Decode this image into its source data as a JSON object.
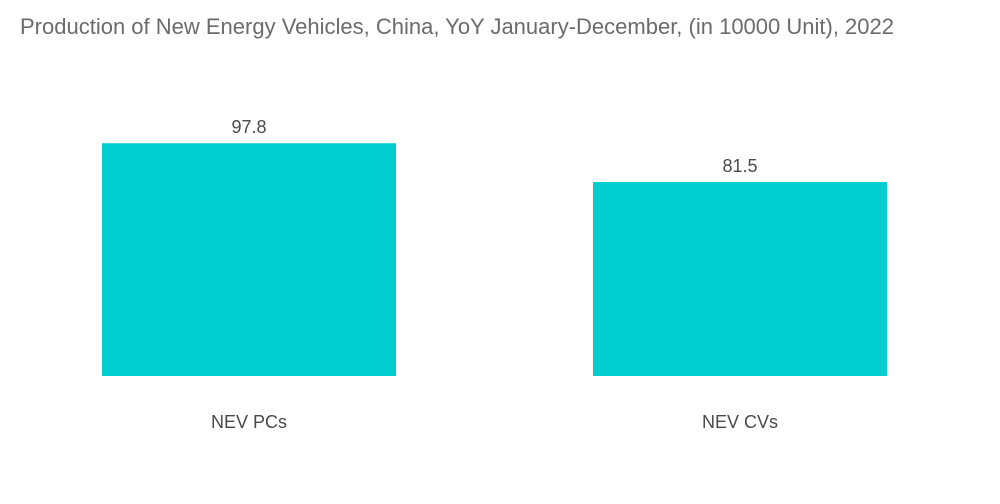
{
  "chart_data": {
    "type": "bar",
    "title": "Production of New Energy Vehicles, China, YoY  January-December, (in 10000 Unit), 2022",
    "categories": [
      "NEV PCs",
      "NEV CVs"
    ],
    "values": [
      97.8,
      81.5
    ],
    "data_labels": [
      "97.8",
      "81.5"
    ],
    "xlabel": "",
    "ylabel": "",
    "ylim": [
      0,
      100
    ],
    "grid": false,
    "legend": "none",
    "bar_color": "#00CED1",
    "title_color": "#6B6B6B",
    "label_color": "#4A4A4A"
  }
}
